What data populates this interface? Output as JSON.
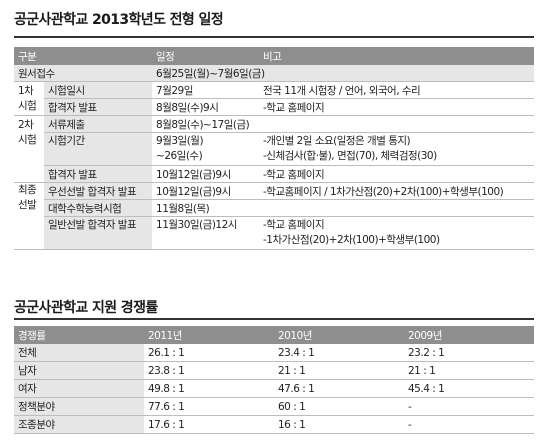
{
  "schedule": {
    "title": "공군사관학교 2013학년도 전형 일정",
    "headers": [
      "구분",
      "일정",
      "비고"
    ],
    "rows": [
      {
        "group": "원서접수",
        "item": "",
        "date": "6월25일(월)~7월6일(금)",
        "note": ""
      },
      {
        "group": "1차",
        "item": "시험일시",
        "date": "7월29일",
        "note": "전국 11개 시험장 / 언어, 외국어, 수리"
      },
      {
        "group": "시험",
        "item": "합격자 발표",
        "date": "8월8일(수)9시",
        "note": "-학교 홈페이지"
      },
      {
        "group": "2차",
        "item": "서류제출",
        "date": "8월8일(수)~17일(금)",
        "note": ""
      },
      {
        "group": "시험",
        "item": "시험기간",
        "date": "9월3일(월)",
        "note": "-개인별 2일 소요(일정은 개별 통지)"
      },
      {
        "group": "",
        "item": "",
        "date": "~26일(수)",
        "note": "-신체검사(합·불), 면접(70), 체력검정(30)"
      },
      {
        "group": "",
        "item": "합격자 발표",
        "date": "10월12일(금)9시",
        "note": "-학교 홈페이지"
      },
      {
        "group": "최종",
        "item": "우선선발 합격자 발표",
        "date": "10월12일(금)9시",
        "note": "-학교홈페이지 / 1차가산점(20)+2차(100)+학생부(100)"
      },
      {
        "group": "선발",
        "item": "대학수학능력시험",
        "date": "11월8일(목)",
        "note": ""
      },
      {
        "group": "",
        "item": "일반선발 합격자 발표",
        "date": "11월30일(금)12시",
        "note": "-학교 홈페이지"
      },
      {
        "group": "",
        "item": "",
        "date": "",
        "note": "-1차가산점(20)+2차(100)+학생부(100)"
      }
    ]
  },
  "competition": {
    "title": "공군사관학교 지원 경쟁률",
    "headers": [
      "경쟁률",
      "2011년",
      "2010년",
      "2009년"
    ],
    "rows": [
      [
        "전체",
        "26.1 : 1",
        "23.4 : 1",
        "23.2 : 1"
      ],
      [
        "남자",
        "23.8 : 1",
        "21 : 1",
        "21 : 1"
      ],
      [
        "여자",
        "49.8 : 1",
        "47.6 : 1",
        "45.4 : 1"
      ],
      [
        "정책분야",
        "77.6 : 1",
        "60 : 1",
        "-"
      ],
      [
        "조종분야",
        "17.6 : 1",
        "16 : 1",
        "-"
      ]
    ]
  }
}
